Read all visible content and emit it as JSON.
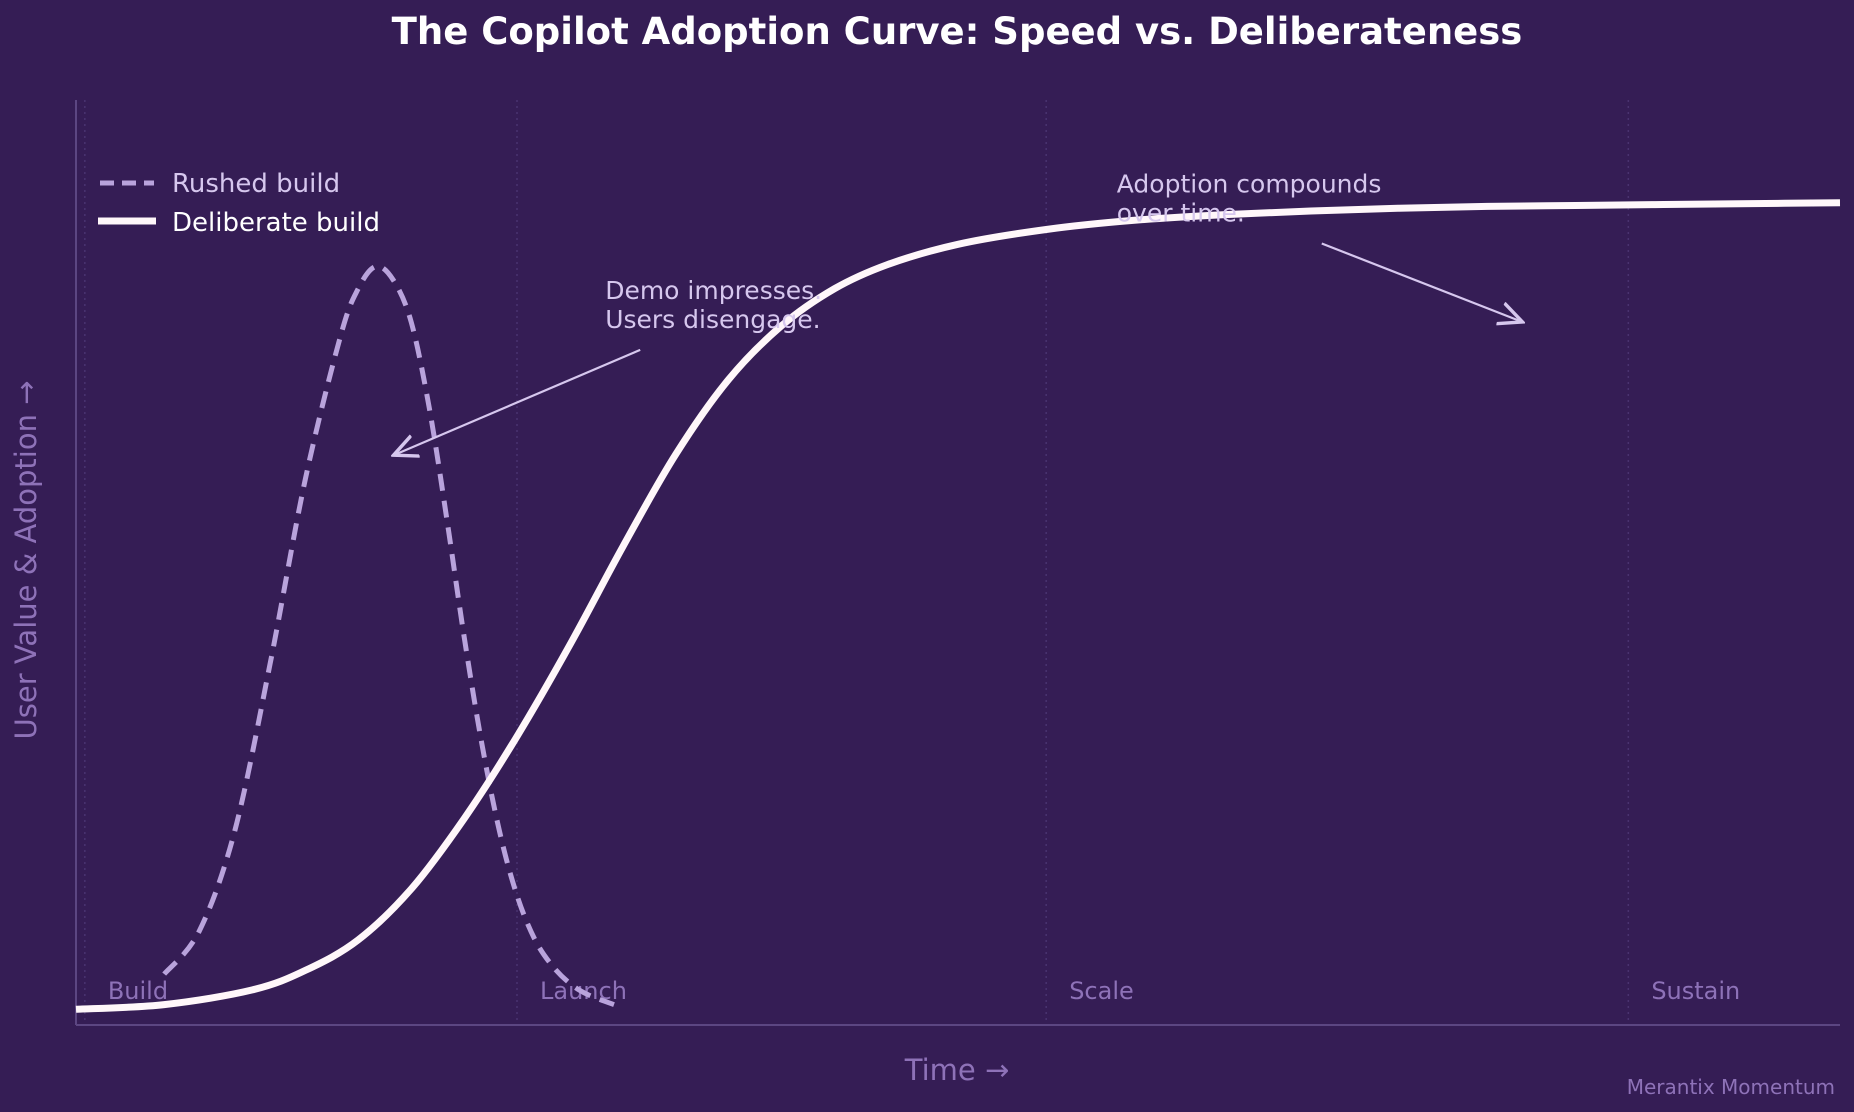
{
  "colors": {
    "background": "#351d55",
    "rushed": "#b9a3dc",
    "deliberate": "#fff7fa",
    "muted": "#8e72b8",
    "annotation": "#d6c7ee",
    "axis": "#5c4682"
  },
  "chart_data": {
    "type": "line",
    "title": "The Copilot Adoption Curve: Speed vs. Deliberateness",
    "xlabel": "Time  →",
    "ylabel": "User Value & Adoption  →",
    "xlim": [
      0,
      10
    ],
    "ylim": [
      0,
      100
    ],
    "grid": false,
    "legend": {
      "position": "top-left",
      "entries": [
        {
          "label": "Rushed build",
          "style": "dashed",
          "series": "rushed"
        },
        {
          "label": "Deliberate build",
          "style": "solid",
          "series": "deliberate"
        }
      ]
    },
    "phases": [
      {
        "label": "Build",
        "x": 0.05
      },
      {
        "label": "Launch",
        "x": 2.5
      },
      {
        "label": "Scale",
        "x": 5.5
      },
      {
        "label": "Sustain",
        "x": 8.8
      }
    ],
    "series": [
      {
        "name": "Rushed build",
        "key": "rushed",
        "style": "dashed",
        "x": [
          0.5,
          0.7,
          0.9,
          1.1,
          1.3,
          1.5,
          1.6,
          1.7,
          1.8,
          1.9,
          2.0,
          2.1,
          2.2,
          2.3,
          2.4,
          2.5,
          2.6,
          2.7,
          2.8,
          2.9,
          3.05
        ],
        "values": [
          5.5,
          10.2,
          21.0,
          39.0,
          59.0,
          74.5,
          79.6,
          82.0,
          80.5,
          76.0,
          67.0,
          55.0,
          42.0,
          30.5,
          21.0,
          14.0,
          9.3,
          6.4,
          4.5,
          3.3,
          2.2
        ]
      },
      {
        "name": "Deliberate build",
        "key": "deliberate",
        "style": "solid",
        "x": [
          0.0,
          0.5,
          1.0,
          1.3,
          1.6,
          1.9,
          2.2,
          2.5,
          2.8,
          3.1,
          3.4,
          3.7,
          4.0,
          4.3,
          4.6,
          5.0,
          5.5,
          6.0,
          6.5,
          7.0,
          7.5,
          8.0,
          8.5,
          9.0,
          9.5,
          10.0
        ],
        "values": [
          1.7,
          2.2,
          3.8,
          5.9,
          9.2,
          14.7,
          22.3,
          31.2,
          41.1,
          51.7,
          61.7,
          69.8,
          75.6,
          79.6,
          82.2,
          84.4,
          86.0,
          87.0,
          87.6,
          88.0,
          88.3,
          88.5,
          88.6,
          88.7,
          88.8,
          88.9
        ]
      }
    ],
    "annotations": [
      {
        "lines": [
          "Demo impresses.",
          "Users disengage."
        ],
        "text_x": 3.0,
        "text_y": 78.5,
        "target_x": 1.8,
        "target_y": 61.6
      },
      {
        "lines": [
          "Adoption compounds",
          "over time."
        ],
        "text_x": 5.9,
        "text_y": 90.0,
        "target_x": 8.2,
        "target_y": 76.0
      }
    ]
  },
  "watermark": "Merantix Momentum"
}
